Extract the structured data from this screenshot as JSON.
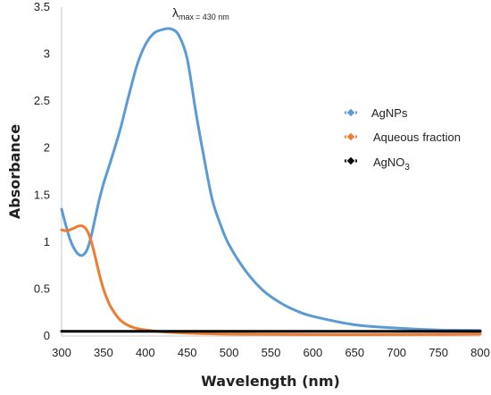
{
  "chart_data": {
    "type": "line",
    "xlabel": "Wavelength (nm)",
    "ylabel": "Absorbance",
    "xlim": [
      300,
      800
    ],
    "ylim": [
      0,
      3.5
    ],
    "x_ticks": [
      "300",
      "350",
      "400",
      "450",
      "500",
      "550",
      "600",
      "650",
      "700",
      "750",
      "800"
    ],
    "y_ticks": [
      "0",
      "0.5",
      "1",
      "1.5",
      "2",
      "2.5",
      "3",
      "3.5"
    ],
    "grid": false,
    "legend_position": "right",
    "annotation": {
      "symbol": "λ",
      "subscript": "max",
      "text": "= 430 nm",
      "x": 430,
      "y": 3.38
    },
    "series": [
      {
        "name": "AgNPs",
        "legend_main": "AgNPs",
        "legend_sub": "",
        "legend_tail": "",
        "color": "#5B9BD5",
        "x": [
          300,
          305,
          310,
          315,
          320,
          325,
          330,
          335,
          340,
          345,
          350,
          360,
          370,
          380,
          390,
          400,
          410,
          420,
          430,
          440,
          450,
          460,
          470,
          480,
          490,
          500,
          520,
          540,
          560,
          580,
          600,
          650,
          700,
          750,
          800
        ],
        "y": [
          1.35,
          1.18,
          1.03,
          0.93,
          0.87,
          0.86,
          0.91,
          1.05,
          1.25,
          1.45,
          1.62,
          1.9,
          2.2,
          2.55,
          2.88,
          3.1,
          3.22,
          3.26,
          3.27,
          3.2,
          2.95,
          2.4,
          1.9,
          1.45,
          1.18,
          0.97,
          0.69,
          0.49,
          0.36,
          0.27,
          0.21,
          0.12,
          0.085,
          0.065,
          0.06
        ]
      },
      {
        "name": "Aqueous fraction",
        "legend_main": "Aqueous",
        "legend_sub": "",
        "legend_tail": "fraction",
        "color": "#ED7D31",
        "x": [
          300,
          305,
          310,
          315,
          320,
          325,
          330,
          335,
          340,
          345,
          350,
          355,
          360,
          370,
          380,
          390,
          400,
          420,
          450,
          500,
          600,
          700,
          800
        ],
        "y": [
          1.13,
          1.12,
          1.13,
          1.15,
          1.17,
          1.17,
          1.13,
          1.02,
          0.85,
          0.66,
          0.5,
          0.38,
          0.29,
          0.17,
          0.11,
          0.08,
          0.065,
          0.045,
          0.03,
          0.02,
          0.015,
          0.015,
          0.02
        ]
      },
      {
        "name": "AgNO3",
        "legend_main": "AgNO",
        "legend_sub": "3",
        "legend_tail": "",
        "color": "#000000",
        "x": [
          300,
          800
        ],
        "y": [
          0.05,
          0.05
        ]
      }
    ]
  }
}
